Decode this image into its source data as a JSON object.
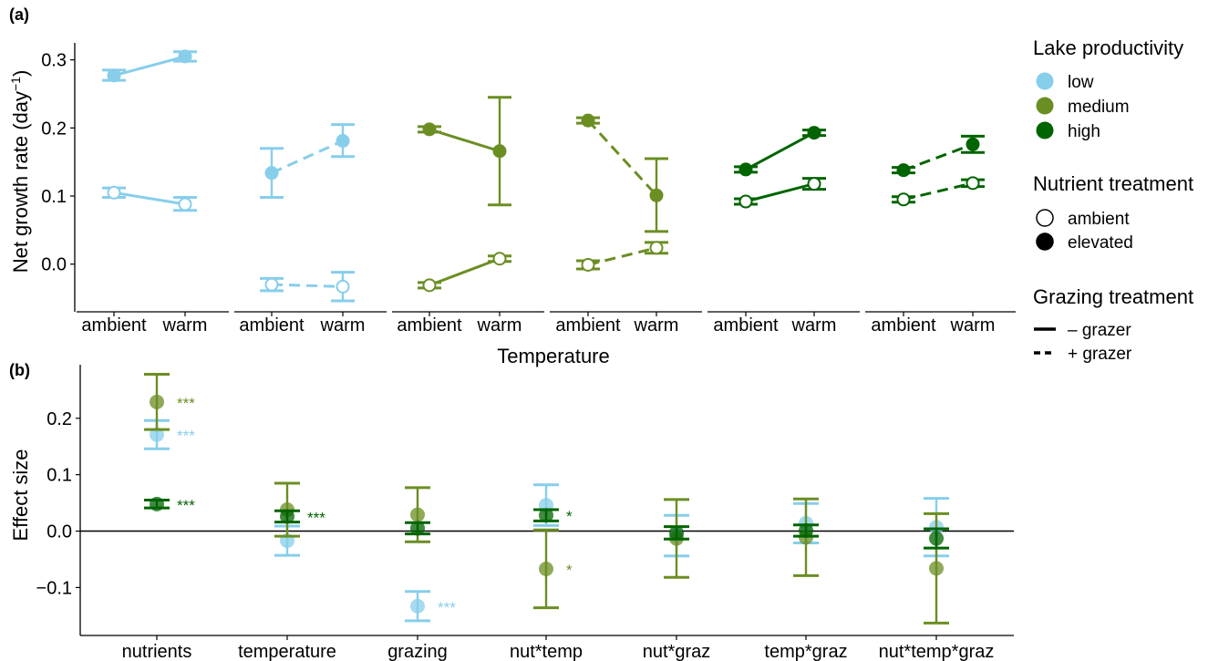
{
  "colors": {
    "low": "#87CEEB",
    "medium": "#6B8E23",
    "high": "#006400",
    "axis": "#000000"
  },
  "panel_a": {
    "label": "(a)",
    "ylabel_main": "Net growth rate (day",
    "ylabel_sup": "−1",
    "ylabel_close": ")",
    "xlabel": "Temperature",
    "xtick_labels": [
      "ambient",
      "warm"
    ],
    "yticks": [
      "0.3",
      "0.2",
      "0.1",
      "0.0"
    ]
  },
  "panel_b": {
    "label": "(b)",
    "ylabel": "Effect size",
    "yticks": [
      "0.2",
      "0.1",
      "0.0",
      "−0.1"
    ]
  },
  "legend": {
    "productivity_title": "Lake productivity",
    "productivity_items": [
      "low",
      "medium",
      "high"
    ],
    "nutrient_title": "Nutrient treatment",
    "nutrient_items": [
      "ambient",
      "elevated"
    ],
    "grazing_title": "Grazing treatment",
    "grazing_items": [
      "– grazer",
      "+ grazer"
    ]
  },
  "chart_data": [
    {
      "type": "line",
      "panel": "a",
      "x_categories": [
        "ambient",
        "warm"
      ],
      "xlabel": "Temperature",
      "ylabel": "Net growth rate (day⁻¹)",
      "ylim": [
        -0.07,
        0.325
      ],
      "facets": [
        {
          "productivity": "low",
          "grazing": "– grazer",
          "series": [
            {
              "nutrients": "elevated",
              "y": [
                0.277,
                0.305
              ],
              "ci_low": [
                0.27,
                0.298
              ],
              "ci_high": [
                0.285,
                0.312
              ]
            },
            {
              "nutrients": "ambient",
              "y": [
                0.105,
                0.088
              ],
              "ci_low": [
                0.098,
                0.079
              ],
              "ci_high": [
                0.112,
                0.098
              ]
            }
          ]
        },
        {
          "productivity": "low",
          "grazing": "+ grazer",
          "series": [
            {
              "nutrients": "elevated",
              "y": [
                0.134,
                0.181
              ],
              "ci_low": [
                0.098,
                0.158
              ],
              "ci_high": [
                0.17,
                0.205
              ]
            },
            {
              "nutrients": "ambient",
              "y": [
                -0.03,
                -0.033
              ],
              "ci_low": [
                -0.039,
                -0.054
              ],
              "ci_high": [
                -0.021,
                -0.012
              ]
            }
          ]
        },
        {
          "productivity": "medium",
          "grazing": "– grazer",
          "series": [
            {
              "nutrients": "elevated",
              "y": [
                0.198,
                0.166
              ],
              "ci_low": [
                0.194,
                0.087
              ],
              "ci_high": [
                0.202,
                0.245
              ]
            },
            {
              "nutrients": "ambient",
              "y": [
                -0.031,
                0.008
              ],
              "ci_low": [
                -0.035,
                0.004
              ],
              "ci_high": [
                -0.027,
                0.012
              ]
            }
          ]
        },
        {
          "productivity": "medium",
          "grazing": "+ grazer",
          "series": [
            {
              "nutrients": "elevated",
              "y": [
                0.211,
                0.101
              ],
              "ci_low": [
                0.207,
                0.048
              ],
              "ci_high": [
                0.215,
                0.155
              ]
            },
            {
              "nutrients": "ambient",
              "y": [
                -0.001,
                0.024
              ],
              "ci_low": [
                -0.007,
                0.016
              ],
              "ci_high": [
                0.005,
                0.032
              ]
            }
          ]
        },
        {
          "productivity": "high",
          "grazing": "– grazer",
          "series": [
            {
              "nutrients": "elevated",
              "y": [
                0.139,
                0.193
              ],
              "ci_low": [
                0.135,
                0.189
              ],
              "ci_high": [
                0.143,
                0.197
              ]
            },
            {
              "nutrients": "ambient",
              "y": [
                0.092,
                0.118
              ],
              "ci_low": [
                0.088,
                0.11
              ],
              "ci_high": [
                0.096,
                0.126
              ]
            }
          ]
        },
        {
          "productivity": "high",
          "grazing": "+ grazer",
          "series": [
            {
              "nutrients": "elevated",
              "y": [
                0.138,
                0.176
              ],
              "ci_low": [
                0.134,
                0.164
              ],
              "ci_high": [
                0.142,
                0.188
              ]
            },
            {
              "nutrients": "ambient",
              "y": [
                0.095,
                0.119
              ],
              "ci_low": [
                0.091,
                0.114
              ],
              "ci_high": [
                0.099,
                0.124
              ]
            }
          ]
        }
      ]
    },
    {
      "type": "scatter",
      "panel": "b",
      "categories": [
        "nutrients",
        "temperature",
        "grazing",
        "nut*temp",
        "nut*graz",
        "temp*graz",
        "nut*temp*graz"
      ],
      "ylabel": "Effect size",
      "ylim": [
        -0.185,
        0.295
      ],
      "series": [
        {
          "productivity": "low",
          "y": [
            0.171,
            -0.017,
            -0.133,
            0.046,
            -0.008,
            0.014,
            0.007
          ],
          "ci_low": [
            0.146,
            -0.043,
            -0.159,
            0.01,
            -0.044,
            -0.021,
            -0.044
          ],
          "ci_high": [
            0.196,
            0.009,
            -0.107,
            0.082,
            0.028,
            0.049,
            0.058
          ],
          "significance": [
            "***",
            "",
            "***",
            "",
            "",
            "",
            ""
          ]
        },
        {
          "productivity": "medium",
          "y": [
            0.229,
            0.038,
            0.029,
            -0.067,
            -0.013,
            -0.011,
            -0.066
          ],
          "ci_low": [
            0.18,
            -0.009,
            -0.019,
            -0.136,
            -0.082,
            -0.079,
            -0.163
          ],
          "ci_high": [
            0.278,
            0.085,
            0.077,
            0.002,
            0.056,
            0.057,
            0.031
          ],
          "significance": [
            "***",
            "",
            "",
            "*",
            "",
            "",
            ""
          ]
        },
        {
          "productivity": "high",
          "y": [
            0.048,
            0.026,
            0.005,
            0.028,
            -0.003,
            0.001,
            -0.013
          ],
          "ci_low": [
            0.041,
            0.016,
            -0.005,
            0.018,
            -0.014,
            -0.009,
            -0.03
          ],
          "ci_high": [
            0.055,
            0.036,
            0.015,
            0.038,
            0.008,
            0.011,
            0.004
          ],
          "significance": [
            "***",
            "***",
            "",
            "*",
            "",
            "",
            ""
          ]
        }
      ]
    }
  ]
}
